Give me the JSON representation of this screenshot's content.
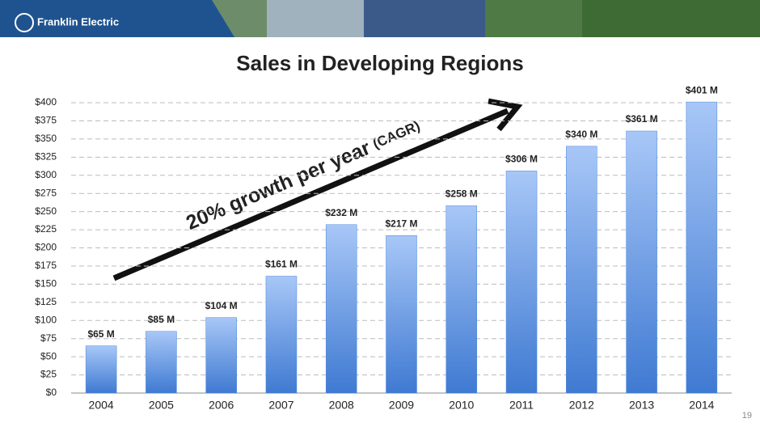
{
  "header": {
    "brand": "Franklin Electric"
  },
  "chart_data": {
    "type": "bar",
    "title": "Sales in Developing Regions",
    "categories": [
      "2004",
      "2005",
      "2006",
      "2007",
      "2008",
      "2009",
      "2010",
      "2011",
      "2012",
      "2013",
      "2014"
    ],
    "values": [
      65,
      85,
      104,
      161,
      232,
      217,
      258,
      306,
      340,
      361,
      401
    ],
    "value_labels": [
      "$65 M",
      "$85 M",
      "$104 M",
      "$161 M",
      "$232 M",
      "$217 M",
      "$258 M",
      "$306 M",
      "$340 M",
      "$361 M",
      "$401 M"
    ],
    "color": "#4a86dc",
    "ylim": [
      0,
      400
    ],
    "yticks": [
      {
        "value": 0,
        "label": "$0"
      },
      {
        "value": 25,
        "label": "$25"
      },
      {
        "value": 50,
        "label": "$50"
      },
      {
        "value": 75,
        "label": "$75"
      },
      {
        "value": 100,
        "label": "$100"
      },
      {
        "value": 125,
        "label": "$125"
      },
      {
        "value": 150,
        "label": "$150"
      },
      {
        "value": 175,
        "label": "$175"
      },
      {
        "value": 200,
        "label": "$200"
      },
      {
        "value": 225,
        "label": "$225"
      },
      {
        "value": 250,
        "label": "$250"
      },
      {
        "value": 275,
        "label": "$275"
      },
      {
        "value": 300,
        "label": "$300"
      },
      {
        "value": 325,
        "label": "$325"
      },
      {
        "value": 350,
        "label": "$350"
      },
      {
        "value": 375,
        "label": "$375"
      },
      {
        "value": 400,
        "label": "$400"
      }
    ],
    "grid": true,
    "annotation": {
      "text": "20% growth per year",
      "note": "(CAGR)"
    }
  },
  "footer": {
    "page_number": "19"
  }
}
